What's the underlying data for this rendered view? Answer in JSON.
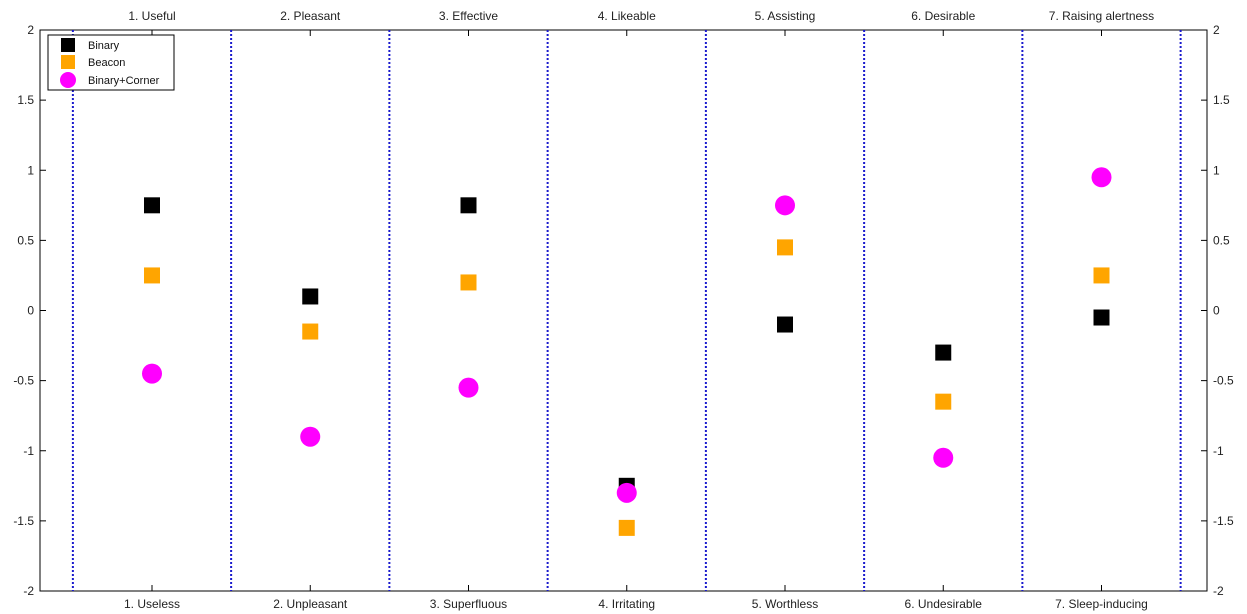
{
  "chart_data": {
    "type": "scatter",
    "top_labels": [
      "1. Useful",
      "2. Pleasant",
      "3. Effective",
      "4. Likeable",
      "5. Assisting",
      "6. Desirable",
      "7. Raising alertness"
    ],
    "bottom_labels": [
      "1. Useless",
      "2. Unpleasant",
      "3. Superfluous",
      "4. Irritating",
      "5. Worthless",
      "6. Undesirable",
      "7. Sleep-inducing"
    ],
    "ylim": [
      -2,
      2
    ],
    "yticks": [
      "-2",
      "-1.5",
      "-1",
      "-0.5",
      "0",
      "0.5",
      "1",
      "1.5",
      "2"
    ],
    "grid": false,
    "legend_position": "top-left",
    "separators": "dotted-blue",
    "series": [
      {
        "name": "Binary",
        "marker": "square",
        "color": "#000000",
        "values": [
          0.75,
          0.1,
          0.75,
          -1.25,
          -0.1,
          -0.3,
          -0.05
        ]
      },
      {
        "name": "Beacon",
        "marker": "square",
        "color": "#FFA500",
        "values": [
          0.25,
          -0.15,
          0.2,
          -1.55,
          0.45,
          -0.65,
          0.25
        ]
      },
      {
        "name": "Binary+Corner",
        "marker": "circle",
        "color": "#FF00FF",
        "values": [
          -0.45,
          -0.9,
          -0.55,
          -1.3,
          0.75,
          -1.05,
          0.95
        ]
      }
    ]
  },
  "colors": {
    "separator": "#1a1acd",
    "axis": "#000000"
  }
}
